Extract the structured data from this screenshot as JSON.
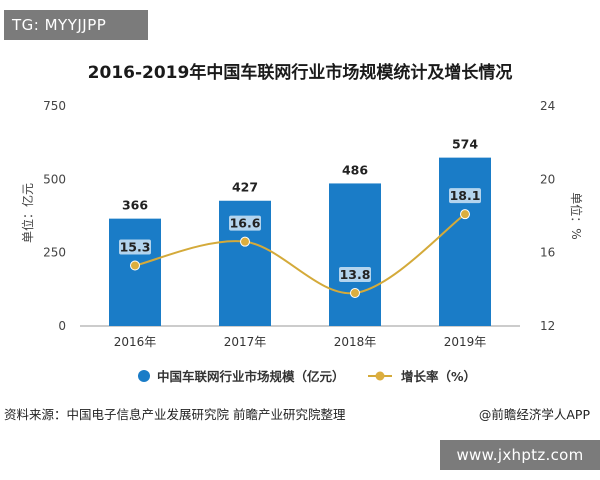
{
  "watermark_top": "TG: MYYJJPP",
  "watermark_bottom": "www.jxhptz.com",
  "source_text": "资料来源：中国电子信息产业发展研究院 前瞻产业研究院整理",
  "credit_text": "@前瞻经济学人APP",
  "colors": {
    "bar": "#1a7cc7",
    "line": "#d4aa3a",
    "marker": "#dcae3f",
    "label_bg": "#cfe4f5"
  },
  "chart_data": {
    "type": "bar",
    "title": "2016-2019年中国车联网行业市场规模统计及增长情况",
    "categories": [
      "2016年",
      "2017年",
      "2018年",
      "2019年"
    ],
    "series": [
      {
        "name": "中国车联网行业市场规模（亿元）",
        "type": "bar",
        "axis": "left",
        "values": [
          366,
          427,
          486,
          574
        ]
      },
      {
        "name": "增长率（%）",
        "type": "line",
        "axis": "right",
        "values": [
          15.3,
          16.6,
          13.8,
          18.1
        ]
      }
    ],
    "ylabel": "单位：亿元",
    "y2label": "单位：%",
    "ylim": [
      0,
      750
    ],
    "yticks": [
      0,
      250,
      500,
      750
    ],
    "y2lim": [
      12,
      24
    ],
    "y2ticks": [
      12,
      16,
      20,
      24
    ],
    "legend": "bottom",
    "grid": false
  }
}
